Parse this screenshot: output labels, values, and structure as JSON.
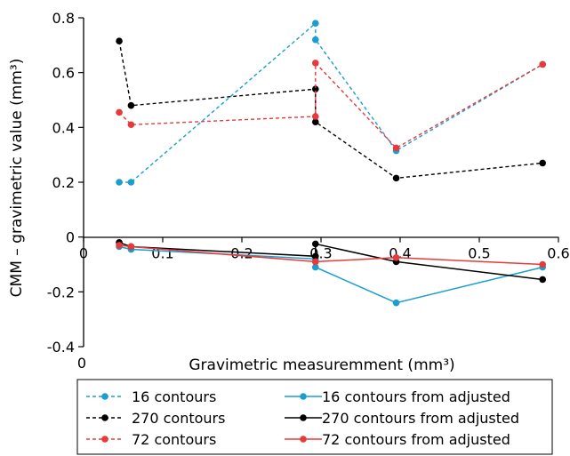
{
  "chart_data": {
    "type": "line",
    "title": "",
    "xlabel": "Gravimetric measuremment (mm³)",
    "ylabel": "CMM – gravimetric value (mm³)",
    "xlim": [
      0,
      0.6
    ],
    "ylim": [
      -0.4,
      0.8
    ],
    "x_ticks": [
      "0",
      "0.1",
      "0.2",
      "0.3",
      "0.4",
      "0.5",
      "0.6"
    ],
    "x_ticks_zero_label": "0",
    "y_ticks": [
      "0.8",
      "0.6",
      "0.4",
      "0.2",
      "0",
      "-0.2",
      "-0.4"
    ],
    "grid": false,
    "legend_position": "bottom",
    "series": [
      {
        "name": "16 contours",
        "color": "#1a9ed0",
        "line": "dashed",
        "points": [
          [
            0.045,
            0.2
          ],
          [
            0.06,
            0.2
          ],
          [
            0.293,
            0.78
          ],
          [
            0.293,
            0.72
          ],
          [
            0.395,
            0.315
          ],
          [
            0.58,
            0.63
          ]
        ]
      },
      {
        "name": "270 contours",
        "color": "#000000",
        "line": "dashed",
        "points": [
          [
            0.045,
            0.715
          ],
          [
            0.06,
            0.48
          ],
          [
            0.293,
            0.54
          ],
          [
            0.293,
            0.42
          ],
          [
            0.395,
            0.215
          ],
          [
            0.58,
            0.27
          ]
        ]
      },
      {
        "name": "72 contours",
        "color": "#e83a3a",
        "line": "dashed",
        "points": [
          [
            0.045,
            0.455
          ],
          [
            0.06,
            0.41
          ],
          [
            0.293,
            0.44
          ],
          [
            0.293,
            0.635
          ],
          [
            0.395,
            0.325
          ],
          [
            0.58,
            0.63
          ]
        ]
      },
      {
        "name": "16 contours from adjusted",
        "color": "#1a9ed0",
        "line": "solid",
        "points": [
          [
            0.045,
            -0.035
          ],
          [
            0.06,
            -0.045
          ],
          [
            0.293,
            -0.08
          ],
          [
            0.293,
            -0.11
          ],
          [
            0.395,
            -0.24
          ],
          [
            0.58,
            -0.11
          ]
        ]
      },
      {
        "name": "270 contours from adjusted",
        "color": "#000000",
        "line": "solid",
        "points": [
          [
            0.045,
            -0.02
          ],
          [
            0.06,
            -0.035
          ],
          [
            0.293,
            -0.07
          ],
          [
            0.293,
            -0.025
          ],
          [
            0.395,
            -0.09
          ],
          [
            0.58,
            -0.155
          ]
        ]
      },
      {
        "name": "72 contours from adjusted",
        "color": "#e83a3a",
        "line": "solid",
        "points": [
          [
            0.045,
            -0.03
          ],
          [
            0.06,
            -0.035
          ],
          [
            0.293,
            -0.09
          ],
          [
            0.293,
            -0.09
          ],
          [
            0.395,
            -0.075
          ],
          [
            0.58,
            -0.1
          ]
        ]
      }
    ]
  }
}
